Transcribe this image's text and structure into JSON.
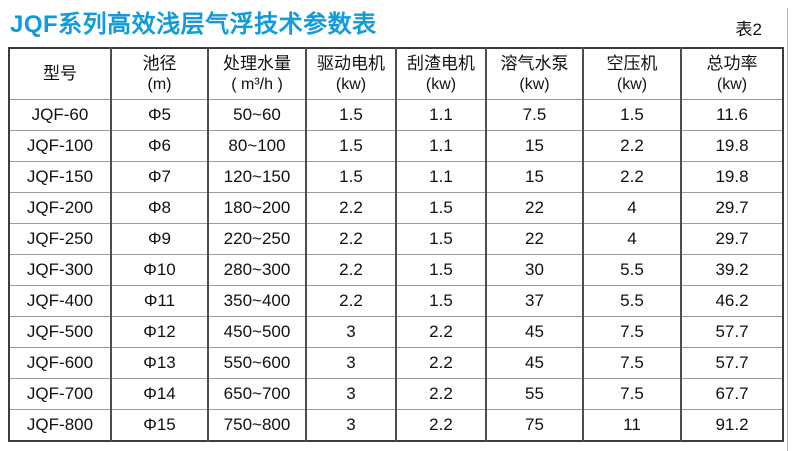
{
  "title": "JQF系列高效浅层气浮技术参数表",
  "table_label": "表2",
  "colors": {
    "title_blue": "#129bdb",
    "border_dark": "#3c3c3c",
    "border_vertical": "#4d4d4d",
    "border_horizontal": "#9b9b9b",
    "text": "#111111",
    "background": "#ffffff"
  },
  "table": {
    "headers": [
      {
        "line1": "型号",
        "line2": ""
      },
      {
        "line1": "池径",
        "line2": "(m)"
      },
      {
        "line1": "处理水量",
        "line2": "( m³/h )"
      },
      {
        "line1": "驱动电机",
        "line2": "(kw)"
      },
      {
        "line1": "刮渣电机",
        "line2": "(kw)"
      },
      {
        "line1": "溶气水泵",
        "line2": "(kw)"
      },
      {
        "line1": "空压机",
        "line2": "(kw)"
      },
      {
        "line1": "总功率",
        "line2": "(kw)"
      }
    ],
    "rows": [
      [
        "JQF-60",
        "Φ5",
        "50~60",
        "1.5",
        "1.1",
        "7.5",
        "1.5",
        "11.6"
      ],
      [
        "JQF-100",
        "Φ6",
        "80~100",
        "1.5",
        "1.1",
        "15",
        "2.2",
        "19.8"
      ],
      [
        "JQF-150",
        "Φ7",
        "120~150",
        "1.5",
        "1.1",
        "15",
        "2.2",
        "19.8"
      ],
      [
        "JQF-200",
        "Φ8",
        "180~200",
        "2.2",
        "1.5",
        "22",
        "4",
        "29.7"
      ],
      [
        "JQF-250",
        "Φ9",
        "220~250",
        "2.2",
        "1.5",
        "22",
        "4",
        "29.7"
      ],
      [
        "JQF-300",
        "Φ10",
        "280~300",
        "2.2",
        "1.5",
        "30",
        "5.5",
        "39.2"
      ],
      [
        "JQF-400",
        "Φ11",
        "350~400",
        "2.2",
        "1.5",
        "37",
        "5.5",
        "46.2"
      ],
      [
        "JQF-500",
        "Φ12",
        "450~500",
        "3",
        "2.2",
        "45",
        "7.5",
        "57.7"
      ],
      [
        "JQF-600",
        "Φ13",
        "550~600",
        "3",
        "2.2",
        "45",
        "7.5",
        "57.7"
      ],
      [
        "JQF-700",
        "Φ14",
        "650~700",
        "3",
        "2.2",
        "55",
        "7.5",
        "67.7"
      ],
      [
        "JQF-800",
        "Φ15",
        "750~800",
        "3",
        "2.2",
        "75",
        "11",
        "91.2"
      ]
    ]
  }
}
